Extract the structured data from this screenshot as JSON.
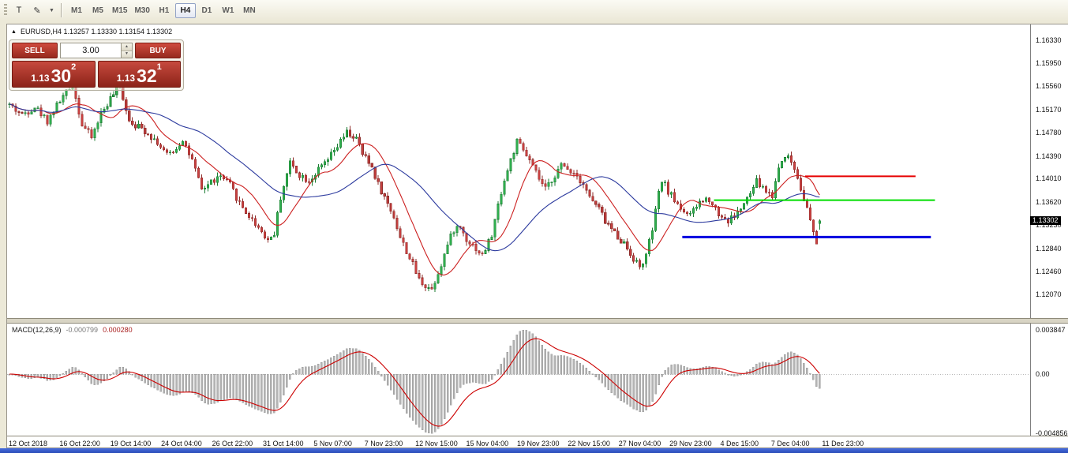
{
  "toolbar": {
    "icons": {
      "text_tool": "T",
      "draw_tool": "✎",
      "chevron": "▼"
    },
    "timeframes": [
      {
        "label": "M1",
        "active": false
      },
      {
        "label": "M5",
        "active": false
      },
      {
        "label": "M15",
        "active": false
      },
      {
        "label": "M30",
        "active": false
      },
      {
        "label": "H1",
        "active": false
      },
      {
        "label": "H4",
        "active": true
      },
      {
        "label": "D1",
        "active": false
      },
      {
        "label": "W1",
        "active": false
      },
      {
        "label": "MN",
        "active": false
      }
    ]
  },
  "chart": {
    "symbol_ohlc_line": "EURUSD,H4 1.13257 1.13330 1.13154 1.13302",
    "panel_toggle_glyph": "▲",
    "price_tag": "1.13302"
  },
  "trade_panel": {
    "sell_label": "SELL",
    "buy_label": "BUY",
    "volume": "3.00",
    "spinner_up": "▲",
    "spinner_down": "▼",
    "sell_price": {
      "small": "1.13",
      "big": "30",
      "sup": "2"
    },
    "buy_price": {
      "small": "1.13",
      "big": "32",
      "sup": "1"
    }
  },
  "macd": {
    "label": "MACD(12,26,9)",
    "value_main": "-0.000799",
    "value_signal": "0.000280"
  },
  "chart_data": {
    "type": "candlestick",
    "symbol": "EURUSD",
    "timeframe": "H4",
    "current_price": 1.13302,
    "last_candle": {
      "open": 1.13257,
      "high": 1.1333,
      "low": 1.13154,
      "close": 1.13302
    },
    "n_candles": 258,
    "plot_width_frac": 0.795,
    "y_axis_ticks": [
      1.1633,
      1.1595,
      1.1556,
      1.1517,
      1.1478,
      1.1439,
      1.1401,
      1.1362,
      1.1323,
      1.1284,
      1.1246,
      1.1207
    ],
    "x_axis_labels": [
      "12 Oct 2018",
      "16 Oct 22:00",
      "19 Oct 14:00",
      "24 Oct 04:00",
      "26 Oct 22:00",
      "31 Oct 14:00",
      "5 Nov 07:00",
      "7 Nov 23:00",
      "12 Nov 15:00",
      "15 Nov 04:00",
      "19 Nov 23:00",
      "22 Nov 15:00",
      "27 Nov 04:00",
      "29 Nov 23:00",
      "4 Dec 15:00",
      "7 Dec 04:00",
      "11 Dec 23:00"
    ],
    "price_anchors": [
      [
        0,
        1.1525
      ],
      [
        4,
        1.1508
      ],
      [
        8,
        1.1522
      ],
      [
        12,
        1.1498
      ],
      [
        16,
        1.1532
      ],
      [
        20,
        1.1558
      ],
      [
        23,
        1.1492
      ],
      [
        26,
        1.147
      ],
      [
        29,
        1.151
      ],
      [
        32,
        1.1535
      ],
      [
        35,
        1.1556
      ],
      [
        38,
        1.15
      ],
      [
        41,
        1.1488
      ],
      [
        44,
        1.1478
      ],
      [
        47,
        1.1462
      ],
      [
        50,
        1.144
      ],
      [
        53,
        1.1452
      ],
      [
        55,
        1.1468
      ],
      [
        58,
        1.143
      ],
      [
        61,
        1.1382
      ],
      [
        64,
        1.1396
      ],
      [
        67,
        1.1404
      ],
      [
        70,
        1.139
      ],
      [
        73,
        1.136
      ],
      [
        76,
        1.1338
      ],
      [
        79,
        1.132
      ],
      [
        82,
        1.1298
      ],
      [
        84,
        1.131
      ],
      [
        86,
        1.137
      ],
      [
        89,
        1.1428
      ],
      [
        92,
        1.1408
      ],
      [
        95,
        1.1398
      ],
      [
        98,
        1.1415
      ],
      [
        101,
        1.1432
      ],
      [
        104,
        1.1455
      ],
      [
        107,
        1.1478
      ],
      [
        110,
        1.1468
      ],
      [
        112,
        1.1442
      ],
      [
        115,
        1.142
      ],
      [
        117,
        1.1392
      ],
      [
        120,
        1.1358
      ],
      [
        122,
        1.1338
      ],
      [
        124,
        1.1302
      ],
      [
        127,
        1.1268
      ],
      [
        130,
        1.1232
      ],
      [
        132,
        1.1222
      ],
      [
        134,
        1.1216
      ],
      [
        137,
        1.1258
      ],
      [
        139,
        1.129
      ],
      [
        141,
        1.1316
      ],
      [
        143,
        1.132
      ],
      [
        145,
        1.13
      ],
      [
        147,
        1.129
      ],
      [
        150,
        1.1272
      ],
      [
        153,
        1.1306
      ],
      [
        156,
        1.138
      ],
      [
        159,
        1.1432
      ],
      [
        161,
        1.1462
      ],
      [
        163,
        1.1448
      ],
      [
        165,
        1.143
      ],
      [
        168,
        1.14
      ],
      [
        170,
        1.1382
      ],
      [
        173,
        1.1408
      ],
      [
        175,
        1.1422
      ],
      [
        177,
        1.1418
      ],
      [
        179,
        1.1412
      ],
      [
        182,
        1.1394
      ],
      [
        184,
        1.137
      ],
      [
        187,
        1.135
      ],
      [
        189,
        1.133
      ],
      [
        192,
        1.131
      ],
      [
        195,
        1.1292
      ],
      [
        198,
        1.1268
      ],
      [
        200,
        1.1252
      ],
      [
        202,
        1.1272
      ],
      [
        204,
        1.1316
      ],
      [
        206,
        1.1375
      ],
      [
        207,
        1.1398
      ],
      [
        210,
        1.1372
      ],
      [
        213,
        1.1352
      ],
      [
        216,
        1.1338
      ],
      [
        219,
        1.1362
      ],
      [
        222,
        1.1368
      ],
      [
        225,
        1.1342
      ],
      [
        228,
        1.133
      ],
      [
        231,
        1.1344
      ],
      [
        234,
        1.1366
      ],
      [
        237,
        1.1396
      ],
      [
        240,
        1.138
      ],
      [
        242,
        1.1372
      ],
      [
        244,
        1.142
      ],
      [
        246,
        1.1442
      ],
      [
        248,
        1.143
      ],
      [
        250,
        1.1404
      ],
      [
        252,
        1.1368
      ],
      [
        254,
        1.133
      ],
      [
        255,
        1.1308
      ],
      [
        256,
        1.1292
      ],
      [
        257,
        1.13302
      ]
    ],
    "levels": [
      {
        "type": "hline",
        "price": 1.1405,
        "color": "#e60000",
        "width": 2,
        "from_frac": 0.78,
        "to_frac": 0.888
      },
      {
        "type": "hline",
        "price": 1.1365,
        "color": "#00dd00",
        "width": 2,
        "from_frac": 0.691,
        "to_frac": 0.907
      },
      {
        "type": "hline",
        "price": 1.1303,
        "color": "#0000e0",
        "width": 3,
        "from_frac": 0.66,
        "to_frac": 0.903
      }
    ],
    "moving_averages": [
      {
        "period": 12,
        "color": "#cc2020"
      },
      {
        "period": 34,
        "color": "#2c3a9e"
      }
    ],
    "indicator": {
      "name": "MACD",
      "params": "12,26,9",
      "last_main": -0.000799,
      "last_signal": 0.00028,
      "axis_max": 0.003847,
      "axis_min": -0.004856,
      "axis_labels": [
        "0.003847",
        "0.00",
        "-0.004856"
      ],
      "histogram_color": "#b4b4b4",
      "histogram_stroke": "#8f8f8f",
      "signal_color": "#cc0000"
    },
    "style": {
      "up_fill": "#2fae4e",
      "up_stroke": "#1c7c33",
      "down_fill": "#c94040",
      "down_stroke": "#8f2c2a",
      "axis_line": "#808080",
      "seed": 42,
      "noise": 0.0006,
      "wick": 0.0007
    }
  }
}
